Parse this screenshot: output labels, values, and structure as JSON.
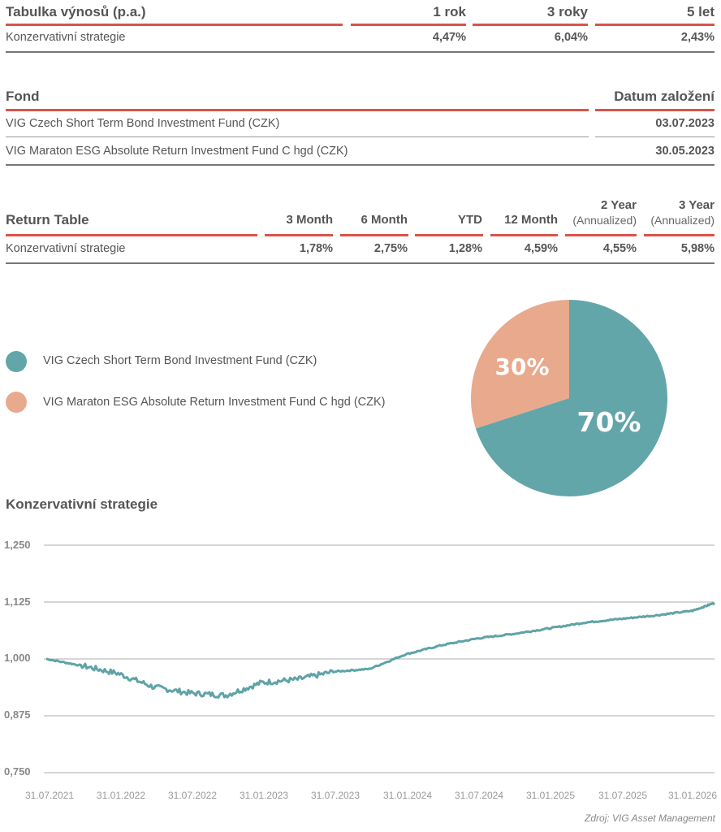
{
  "table1": {
    "title": "Tabulka výnosů (p.a.)",
    "columns": [
      "1 rok",
      "3 roky",
      "5 let"
    ],
    "rows": [
      {
        "name": "Konzervativní strategie",
        "values": [
          "4,47%",
          "6,04%",
          "2,43%"
        ]
      }
    ]
  },
  "table2": {
    "col_fund": "Fond",
    "col_date": "Datum založení",
    "rows": [
      {
        "name": "VIG Czech Short Term Bond Investment Fund (CZK)",
        "date": "03.07.2023"
      },
      {
        "name": "VIG Maraton ESG Absolute Return Investment Fund C hgd (CZK)",
        "date": "30.05.2023"
      }
    ]
  },
  "table3": {
    "title": "Return Table",
    "columns": [
      {
        "line1": "",
        "line2": "3 Month"
      },
      {
        "line1": "",
        "line2": "6 Month"
      },
      {
        "line1": "",
        "line2": "YTD"
      },
      {
        "line1": "",
        "line2": "12 Month"
      },
      {
        "line1": "2 Year",
        "line2": "(Annualized)"
      },
      {
        "line1": "3 Year",
        "line2": "(Annualized)"
      }
    ],
    "rows": [
      {
        "name": "Konzervativní strategie",
        "values": [
          "1,78%",
          "2,75%",
          "1,28%",
          "4,59%",
          "4,55%",
          "5,98%"
        ]
      }
    ]
  },
  "chart_data": [
    {
      "type": "pie",
      "labels": [
        "VIG Czech Short Term Bond Investment Fund (CZK)",
        "VIG Maraton ESG Absolute Return Investment Fund C hgd (CZK)"
      ],
      "values": [
        70,
        30
      ],
      "value_labels": [
        "70%",
        "30%"
      ],
      "colors": [
        "#62a6aa",
        "#e8a98d"
      ],
      "legend": "left"
    },
    {
      "type": "line",
      "title": "Konzervativní strategie",
      "xlabel": "",
      "ylabel": "",
      "ylim": [
        0.75,
        1.25
      ],
      "yticks": [
        "1,250",
        "1,125",
        "1,000",
        "0,875",
        "0,750"
      ],
      "ytick_values": [
        1.25,
        1.125,
        1.0,
        0.875,
        0.75
      ],
      "xticks": [
        "31.07.2021",
        "31.01.2022",
        "31.07.2022",
        "31.01.2023",
        "31.07.2023",
        "31.01.2024",
        "31.07.2024",
        "31.01.2025",
        "31.07.2025",
        "31.01.2026"
      ],
      "grid": true,
      "color": "#5fa3a7",
      "series": [
        {
          "name": "Konzervativní strategie",
          "x": [
            "31.07.2021",
            "31.10.2021",
            "31.01.2022",
            "30.04.2022",
            "31.07.2022",
            "31.10.2022",
            "31.01.2023",
            "30.04.2023",
            "31.07.2023",
            "31.10.2023",
            "31.01.2024",
            "30.04.2024",
            "31.07.2024",
            "31.10.2024",
            "31.01.2025",
            "30.04.2025",
            "31.07.2025",
            "31.10.2025",
            "31.01.2026",
            "28.02.2026"
          ],
          "values": [
            1.0,
            0.985,
            0.968,
            0.938,
            0.925,
            0.92,
            0.948,
            0.955,
            0.972,
            0.978,
            1.01,
            1.03,
            1.045,
            1.055,
            1.067,
            1.08,
            1.088,
            1.096,
            1.106,
            1.123
          ]
        }
      ]
    }
  ],
  "source": "Zdroj: VIG Asset Management"
}
